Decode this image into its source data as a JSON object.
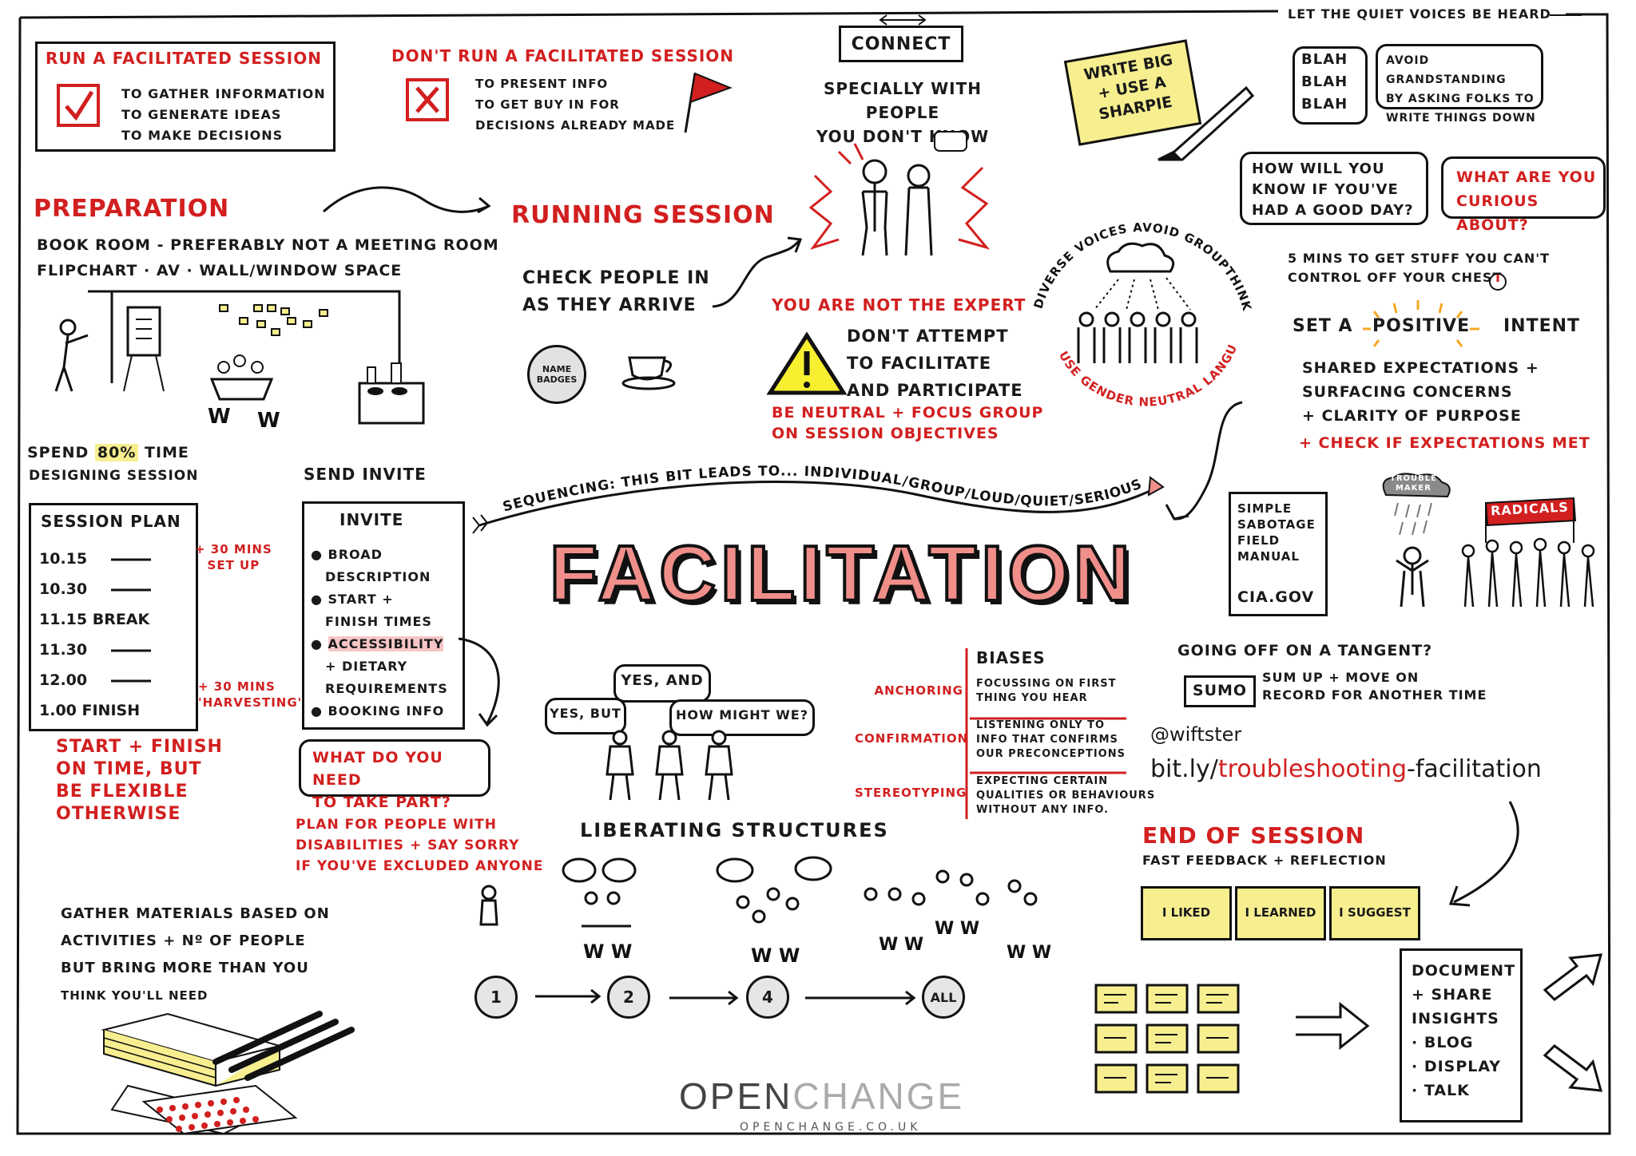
{
  "title": "FACILITATION",
  "run_session": {
    "heading": "RUN A FACILITATED SESSION",
    "items": [
      "TO GATHER INFORMATION",
      "TO GENERATE IDEAS",
      "TO MAKE DECISIONS"
    ]
  },
  "dont_run": {
    "heading": "DON'T RUN A FACILITATED SESSION",
    "items": [
      "TO PRESENT INFO",
      "TO GET BUY IN FOR",
      "DECISIONS ALREADY MADE"
    ]
  },
  "connect": {
    "label": "CONNECT",
    "line1": "SPECIALLY WITH PEOPLE",
    "line2": "YOU DON'T KNOW"
  },
  "write_big": {
    "line1": "WRITE BIG",
    "line2": "+ USE A",
    "line3": "SHARPIE"
  },
  "quiet_voices": {
    "heading": "LET THE QUIET VOICES BE HEARD",
    "blah": [
      "BLAH",
      "BLAH",
      "BLAH"
    ],
    "avoid": [
      "AVOID GRANDSTANDING",
      "BY ASKING FOLKS TO",
      "WRITE THINGS DOWN"
    ]
  },
  "questions": {
    "good_day": [
      "HOW WILL YOU",
      "KNOW IF YOU'VE",
      "HAD A GOOD DAY?"
    ],
    "curious": [
      "WHAT ARE YOU",
      "CURIOUS ABOUT?"
    ]
  },
  "five_mins": [
    "5 MINS TO GET STUFF YOU CAN'T",
    "CONTROL OFF YOUR CHEST"
  ],
  "intent": {
    "set_a": "SET A",
    "positive": "POSITIVE",
    "intent": "INTENT",
    "lines": [
      "SHARED EXPECTATIONS +",
      "SURFACING CONCERNS",
      "+ CLARITY OF PURPOSE"
    ],
    "check": "+ CHECK IF EXPECTATIONS MET"
  },
  "preparation": {
    "heading": "PREPARATION",
    "line1": "BOOK ROOM - PREFERABLY NOT A MEETING ROOM",
    "line2": "FLIPCHART · AV · WALL/WINDOW SPACE"
  },
  "running": {
    "heading": "RUNNING SESSION",
    "check_in": [
      "CHECK PEOPLE IN",
      "AS THEY ARRIVE"
    ],
    "name_badges": [
      "NAME",
      "BADGES"
    ]
  },
  "not_expert": {
    "heading": "YOU ARE NOT THE EXPERT",
    "lines": [
      "DON'T ATTEMPT",
      "TO FACILITATE",
      "AND PARTICIPATE"
    ],
    "red_lines": [
      "BE NEUTRAL + FOCUS GROUP",
      "ON SESSION OBJECTIVES"
    ]
  },
  "diverse": {
    "arc_top": "DIVERSE VOICES AVOID GROUPTHINK",
    "arc_bottom": "USE GENDER NEUTRAL LANGUAGE"
  },
  "spend": [
    "SPEND",
    "80%",
    "TIME",
    "DESIGNING SESSION"
  ],
  "session_plan": {
    "heading": "SESSION PLAN",
    "rows": [
      "10.15",
      "10.30",
      "11.15 BREAK",
      "11.30",
      "12.00",
      "1.00 FINISH"
    ],
    "setup_note": [
      "+ 30 MINS",
      "SET UP"
    ],
    "harvest_note": [
      "+ 30 MINS",
      "'HARVESTING'"
    ]
  },
  "start_finish": [
    "START + FINISH",
    "ON TIME, BUT",
    "BE FLEXIBLE",
    "OTHERWISE"
  ],
  "send_invite": {
    "heading": "SEND INVITE",
    "card_title": "INVITE",
    "items": [
      "BROAD",
      "DESCRIPTION",
      "START +",
      "FINISH TIMES",
      "ACCESSIBILITY",
      "+ DIETARY",
      "REQUIREMENTS",
      "BOOKING INFO"
    ]
  },
  "what_need": [
    "WHAT DO YOU NEED",
    "TO TAKE PART?"
  ],
  "plan_for": [
    "PLAN FOR PEOPLE WITH",
    "DISABILITIES + SAY SORRY",
    "IF YOU'VE EXCLUDED ANYONE"
  ],
  "sequencing": "SEQUENCING: THIS BIT LEADS TO... INDIVIDUAL/GROUP/LOUD/QUIET/SERIOUS",
  "sabotage": [
    "SIMPLE",
    "SABOTAGE",
    "FIELD",
    "MANUAL",
    "CIA.GOV"
  ],
  "trouble": [
    "TROUBLE",
    "MAKER"
  ],
  "radicals": "RADICALS",
  "speech": {
    "yes_and": "YES, AND",
    "yes_but": "YES, BUT",
    "how_might": "HOW MIGHT WE?"
  },
  "biases": {
    "heading": "BIASES",
    "rows": [
      {
        "name": "ANCHORING",
        "desc": [
          "FOCUSSING ON FIRST",
          "THING YOU HEAR"
        ]
      },
      {
        "name": "CONFIRMATION",
        "desc": [
          "LISTENING ONLY TO",
          "INFO THAT CONFIRMS",
          "OUR PRECONCEPTIONS"
        ]
      },
      {
        "name": "STEREOTYPING",
        "desc": [
          "EXPECTING CERTAIN",
          "QUALITIES OR BEHAVIOURS",
          "WITHOUT ANY INFO."
        ]
      }
    ]
  },
  "tangent": {
    "heading": "GOING OFF ON A TANGENT?",
    "sumo": "SUMO",
    "lines": [
      "SUM UP + MOVE ON",
      "RECORD FOR ANOTHER TIME"
    ]
  },
  "contact": {
    "handle": "@wiftster",
    "link_prefix": "bit.ly/",
    "link_red": "troubleshooting",
    "link_suffix": "-facilitation"
  },
  "liberating": {
    "heading": "LIBERATING STRUCTURES",
    "steps": [
      "1",
      "2",
      "4",
      "ALL"
    ]
  },
  "gather": [
    "GATHER MATERIALS BASED ON",
    "ACTIVITIES + Nº OF PEOPLE",
    "BUT BRING MORE THAN YOU",
    "THINK YOU'LL NEED"
  ],
  "end_session": {
    "heading": "END OF SESSION",
    "sub": "FAST FEEDBACK + REFLECTION",
    "stickies": [
      "I LIKED",
      "I LEARNED",
      "I SUGGEST"
    ]
  },
  "document": [
    "DOCUMENT",
    "+ SHARE",
    "INSIGHTS",
    "· BLOG",
    "· DISPLAY",
    "· TALK"
  ],
  "brand": {
    "open": "OPEN",
    "change": "CHANGE",
    "url": "OPENCHANGE.CO.UK"
  },
  "colors": {
    "red": "#d21f1f",
    "sticky": "#f7ef8f",
    "title_fill": "#f08f8a",
    "ink": "#111111"
  }
}
